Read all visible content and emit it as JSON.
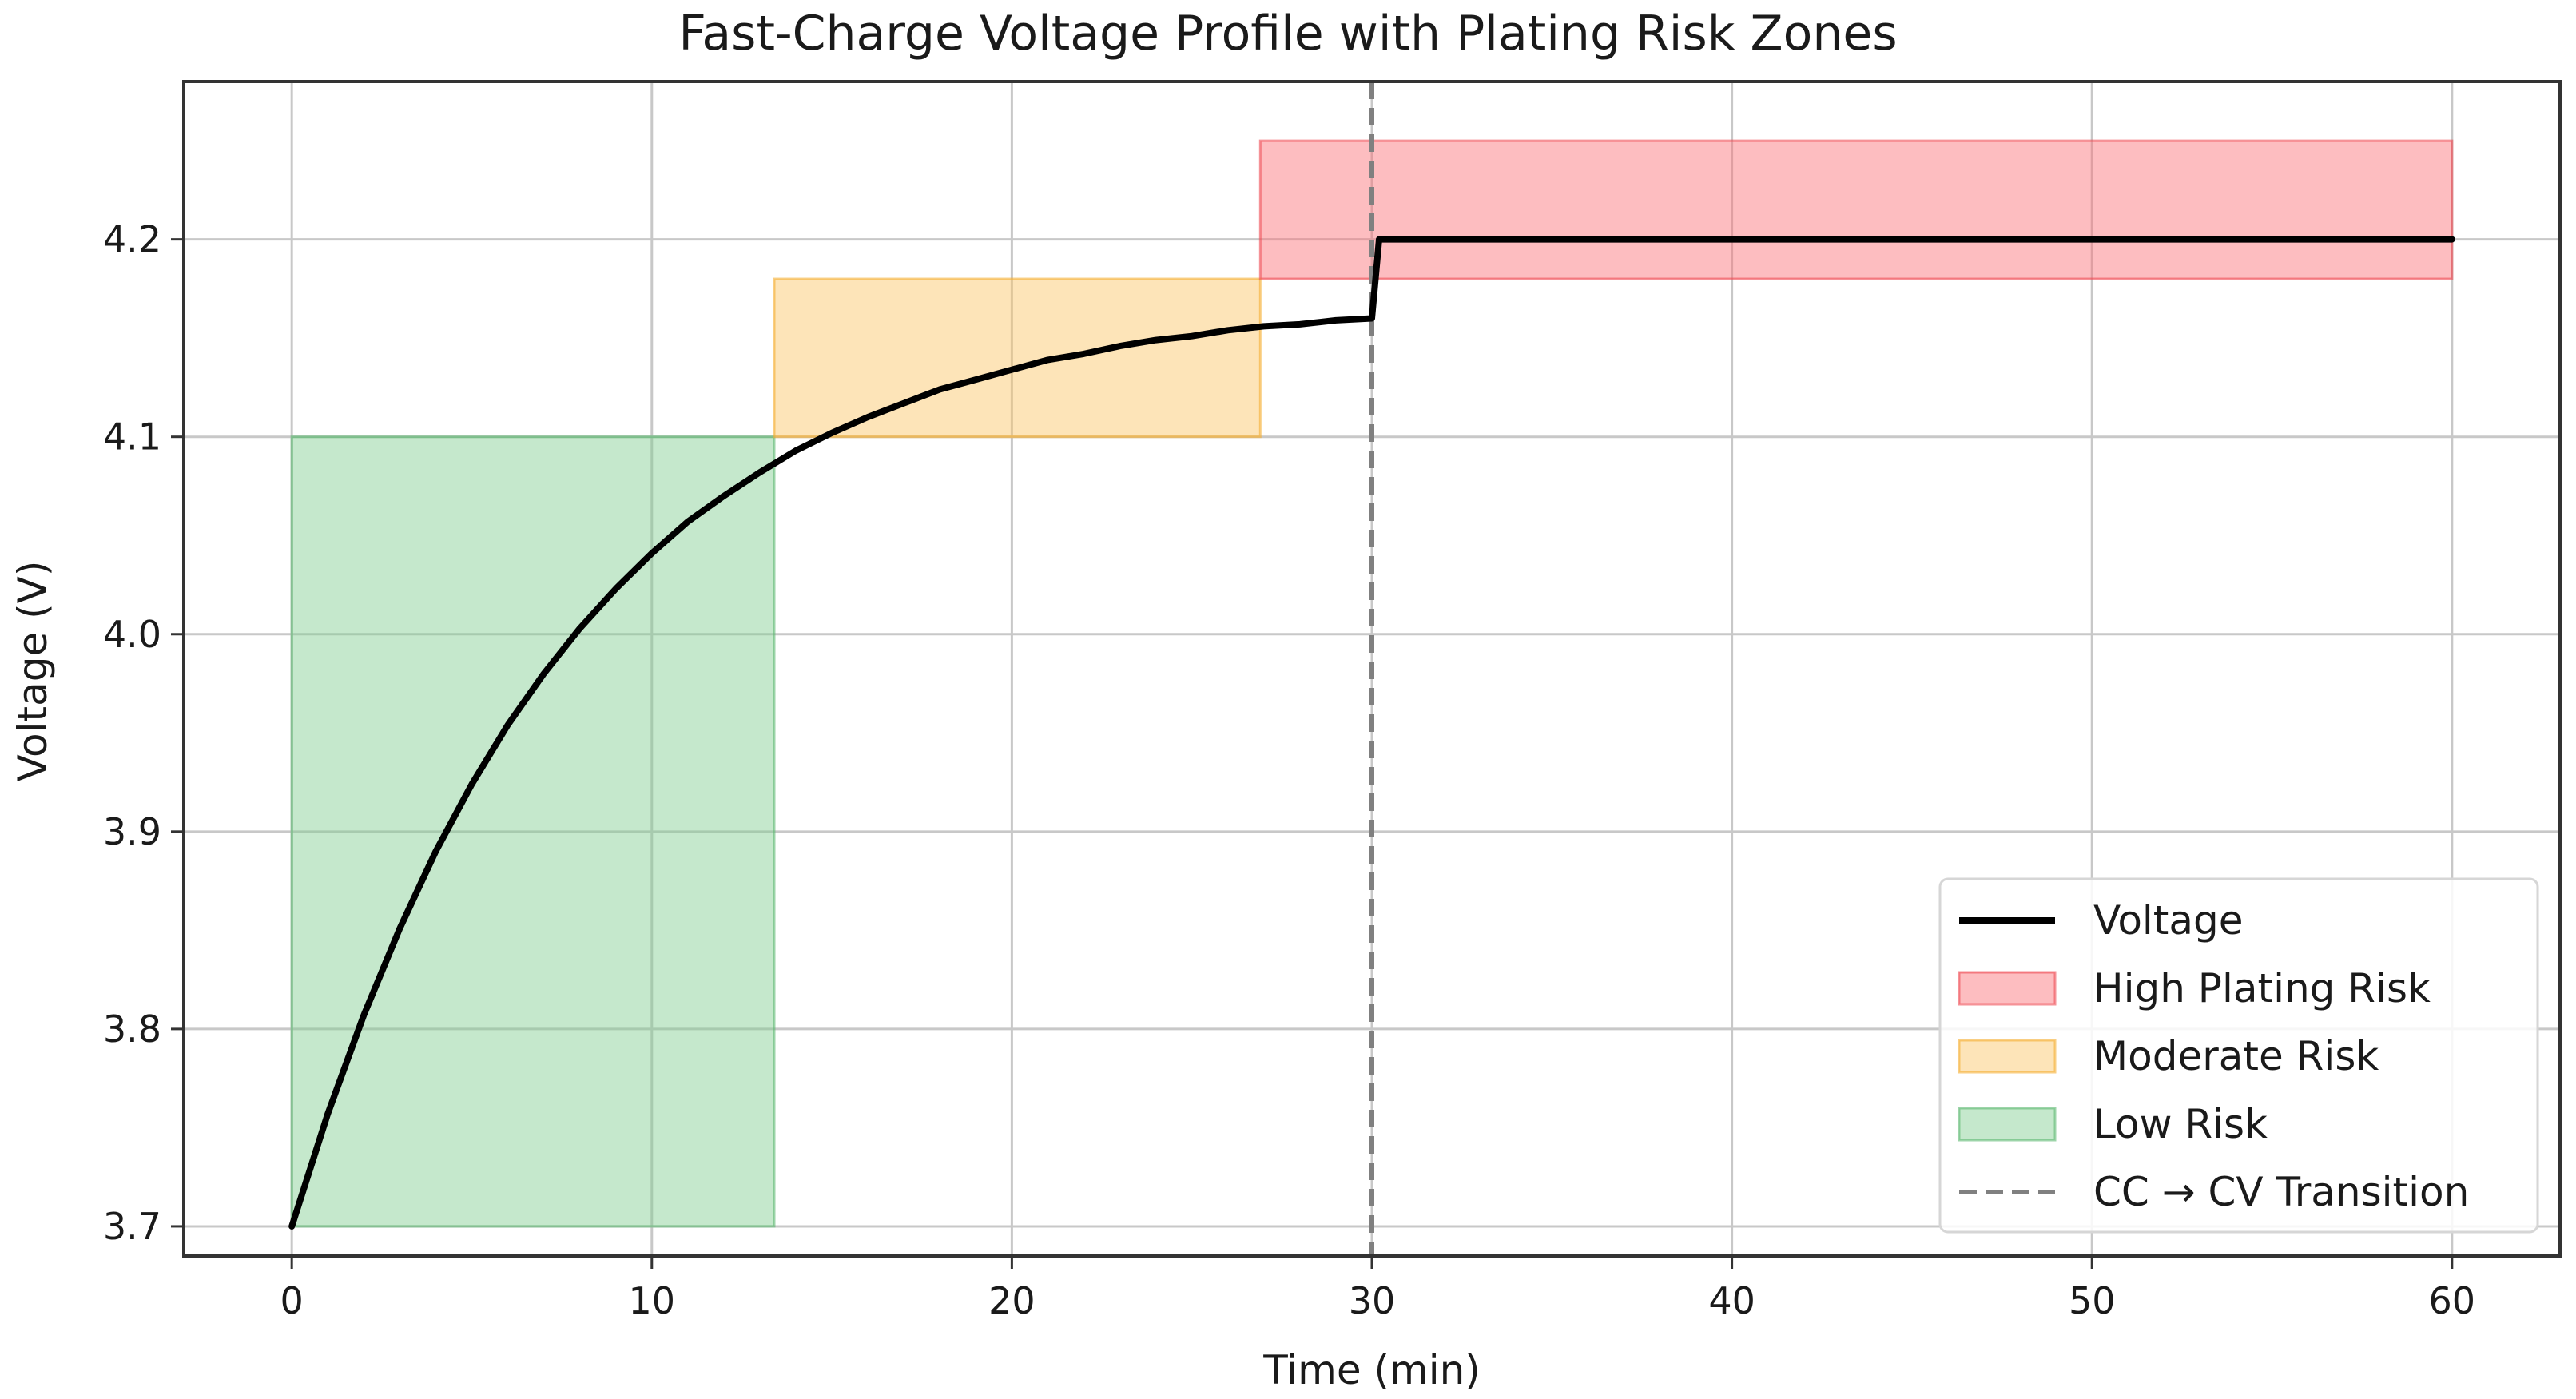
{
  "chart_data": {
    "type": "line",
    "title": "Fast-Charge Voltage Profile with Plating Risk Zones",
    "xlabel": "Time (min)",
    "ylabel": "Voltage (V)",
    "xlim": [
      -3,
      63
    ],
    "ylim": [
      3.685,
      4.28
    ],
    "xticks": [
      0,
      10,
      20,
      30,
      40,
      50,
      60
    ],
    "yticks": [
      3.7,
      3.8,
      3.9,
      4.0,
      4.1,
      4.2
    ],
    "xtick_labels": [
      "0",
      "10",
      "20",
      "30",
      "40",
      "50",
      "60"
    ],
    "ytick_labels": [
      "3.7",
      "3.8",
      "3.9",
      "4.0",
      "4.1",
      "4.2"
    ],
    "grid": true,
    "legend_position": "lower-right",
    "zones": [
      {
        "name": "Low Risk",
        "x": [
          0,
          13.4
        ],
        "y": [
          3.7,
          4.1
        ],
        "color": "#7fcc8f",
        "stroke": "#5bb870"
      },
      {
        "name": "Moderate Risk",
        "x": [
          13.4,
          26.9
        ],
        "y": [
          4.1,
          4.18
        ],
        "color": "#fbc461",
        "stroke": "#f5ad2f"
      },
      {
        "name": "High Plating Risk",
        "x": [
          26.9,
          60
        ],
        "y": [
          4.18,
          4.25
        ],
        "color": "#fa6d73",
        "stroke": "#ee4a52"
      }
    ],
    "series": [
      {
        "name": "Voltage",
        "color": "#000000",
        "x": [
          0,
          1,
          2,
          3,
          4,
          5,
          6,
          7,
          8,
          9,
          10,
          11,
          12,
          13,
          14,
          15,
          16,
          17,
          18,
          19,
          20,
          21,
          22,
          23,
          24,
          25,
          26,
          27,
          28,
          29,
          30,
          30.2,
          35,
          40,
          45,
          50,
          55,
          60
        ],
        "values": [
          3.7,
          3.757,
          3.807,
          3.851,
          3.89,
          3.924,
          3.954,
          3.98,
          4.003,
          4.023,
          4.041,
          4.057,
          4.07,
          4.082,
          4.093,
          4.102,
          4.11,
          4.117,
          4.124,
          4.129,
          4.134,
          4.139,
          4.142,
          4.146,
          4.149,
          4.151,
          4.154,
          4.156,
          4.157,
          4.159,
          4.16,
          4.2,
          4.2,
          4.2,
          4.2,
          4.2,
          4.2,
          4.2
        ]
      }
    ],
    "annotations": [
      {
        "type": "vline",
        "x": 30,
        "name": "CC → CV Transition",
        "color": "#808080",
        "style": "dashed"
      }
    ],
    "legend": [
      {
        "label": "Voltage",
        "kind": "line",
        "color": "#000000"
      },
      {
        "label": "High Plating Risk",
        "kind": "patch",
        "color": "#fa6d73",
        "stroke": "#ee4a52"
      },
      {
        "label": "Moderate Risk",
        "kind": "patch",
        "color": "#fbc461",
        "stroke": "#f5ad2f"
      },
      {
        "label": "Low Risk",
        "kind": "patch",
        "color": "#7fcc8f",
        "stroke": "#5bb870"
      },
      {
        "label": "CC → CV Transition",
        "kind": "dashed",
        "color": "#808080"
      }
    ]
  }
}
